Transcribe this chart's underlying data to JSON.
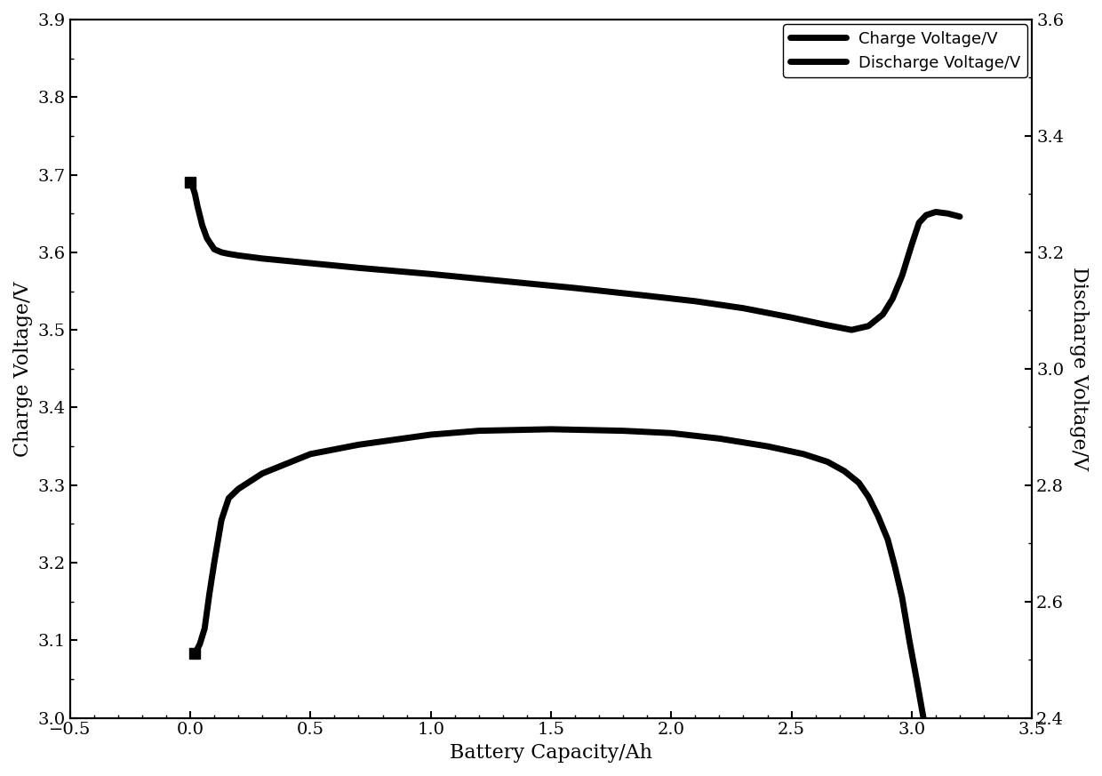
{
  "xlabel": "Battery Capacity/Ah",
  "ylabel_left": "Charge Voltage/V",
  "ylabel_right": "Discharge Voltage/V",
  "legend_charge": "Charge Voltage/V",
  "legend_discharge": "Discharge Voltage/V",
  "xlim": [
    -0.5,
    3.5
  ],
  "ylim_left": [
    3.0,
    3.9
  ],
  "ylim_right": [
    2.4,
    3.6
  ],
  "line_color": "#000000",
  "line_width": 5.0,
  "charge_x": [
    0.0,
    0.01,
    0.02,
    0.03,
    0.05,
    0.07,
    0.1,
    0.13,
    0.16,
    0.2,
    0.3,
    0.5,
    0.7,
    1.0,
    1.3,
    1.6,
    1.9,
    2.1,
    2.3,
    2.5,
    2.65,
    2.75,
    2.82,
    2.88,
    2.92,
    2.96,
    3.0,
    3.03,
    3.06,
    3.1,
    3.15,
    3.2
  ],
  "charge_y": [
    3.69,
    3.685,
    3.675,
    3.66,
    3.635,
    3.618,
    3.604,
    3.6,
    3.598,
    3.596,
    3.592,
    3.586,
    3.58,
    3.572,
    3.563,
    3.554,
    3.544,
    3.537,
    3.528,
    3.516,
    3.506,
    3.5,
    3.505,
    3.52,
    3.54,
    3.57,
    3.61,
    3.638,
    3.648,
    3.652,
    3.65,
    3.646
  ],
  "discharge_x": [
    0.02,
    0.04,
    0.06,
    0.08,
    0.1,
    0.13,
    0.16,
    0.2,
    0.3,
    0.5,
    0.7,
    1.0,
    1.2,
    1.5,
    1.8,
    2.0,
    2.2,
    2.4,
    2.55,
    2.65,
    2.72,
    2.78,
    2.82,
    2.86,
    2.9,
    2.93,
    2.96,
    2.99,
    3.02,
    3.06,
    3.1,
    3.15,
    3.2,
    3.22
  ],
  "discharge_y_left": [
    3.083,
    3.095,
    3.115,
    3.16,
    3.2,
    3.255,
    3.283,
    3.295,
    3.315,
    3.34,
    3.352,
    3.365,
    3.37,
    3.372,
    3.37,
    3.367,
    3.36,
    3.35,
    3.34,
    3.33,
    3.318,
    3.303,
    3.285,
    3.26,
    3.23,
    3.195,
    3.155,
    3.1,
    3.05,
    2.98,
    2.92,
    2.85,
    2.78,
    2.74
  ],
  "charge_marker_x": [
    0.0
  ],
  "charge_marker_y": [
    3.69
  ],
  "discharge_marker_x": [
    0.02
  ],
  "discharge_marker_y": [
    3.083
  ],
  "xticks": [
    -0.5,
    0.0,
    0.5,
    1.0,
    1.5,
    2.0,
    2.5,
    3.0,
    3.5
  ],
  "yticks_left": [
    3.0,
    3.1,
    3.2,
    3.3,
    3.4,
    3.5,
    3.6,
    3.7,
    3.8,
    3.9
  ],
  "yticks_right": [
    2.4,
    2.6,
    2.8,
    3.0,
    3.2,
    3.4,
    3.6
  ],
  "background_color": "#ffffff",
  "marker_style": "s",
  "marker_size": 9,
  "font_size_label": 16,
  "font_size_tick": 14,
  "font_size_legend": 13
}
